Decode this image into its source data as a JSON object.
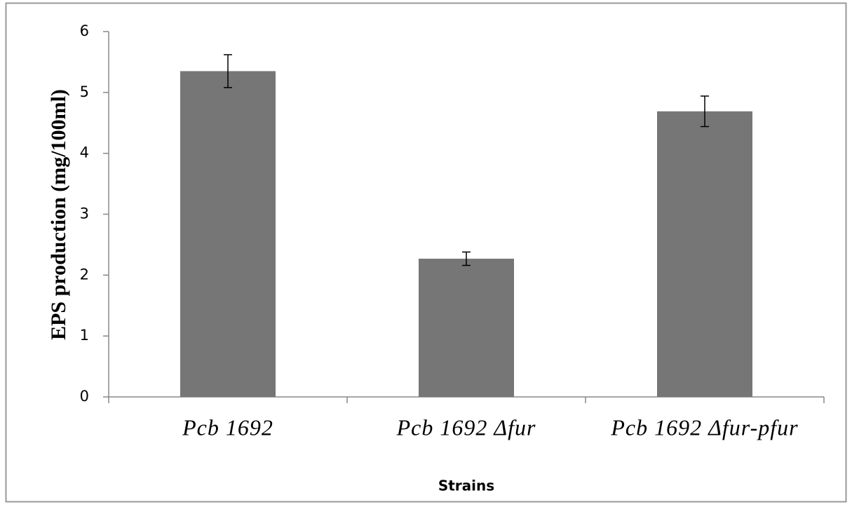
{
  "chart_data": {
    "type": "bar",
    "xlabel": "Strains",
    "ylabel": "EPS production (mg/100ml)",
    "categories": [
      "Pcb 1692",
      "Pcb 1692 Δfur",
      "Pcb 1692 Δfur-pfur"
    ],
    "values": [
      5.35,
      2.27,
      4.69
    ],
    "errors": [
      0.27,
      0.11,
      0.25
    ],
    "color": "#767676",
    "ylim": [
      0,
      6
    ],
    "yticks": [
      0,
      1,
      2,
      3,
      4,
      5,
      6
    ],
    "grid": false
  }
}
